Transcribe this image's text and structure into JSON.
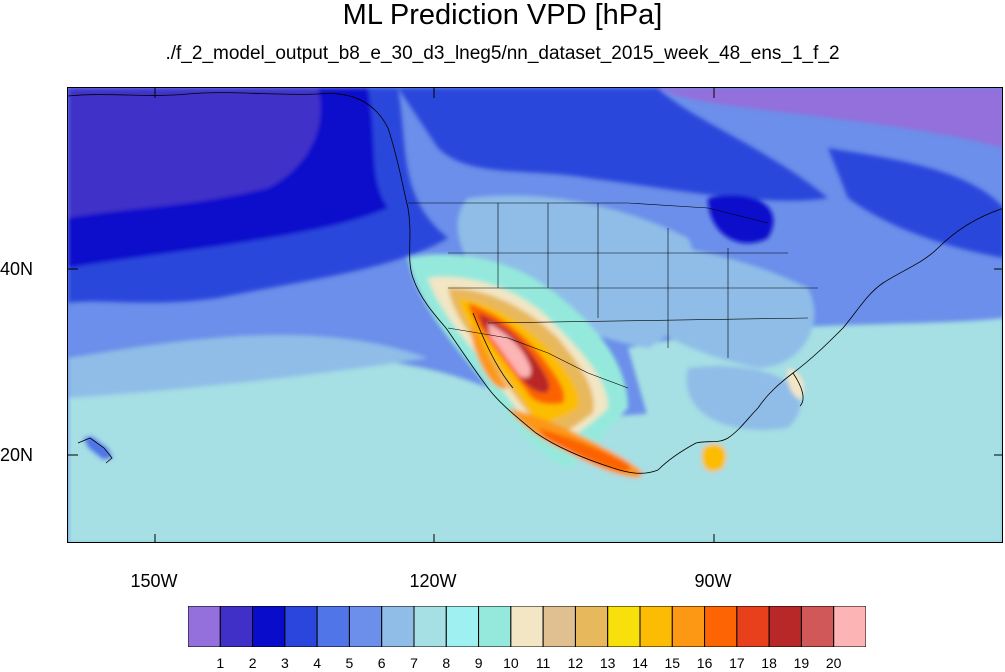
{
  "title": "ML Prediction VPD [hPa]",
  "subtitle": "./f_2_model_output_b8_e_30_d3_lneg5/nn_dataset_2015_week_48_ens_1_f_2",
  "map": {
    "projection": "cylindrical-equidistant",
    "lon_range": [
      -160,
      -60
    ],
    "lat_range": [
      10,
      59
    ],
    "lat_ticks": [
      {
        "value": 40,
        "label": "40N"
      },
      {
        "value": 20,
        "label": "20N"
      }
    ],
    "lon_ticks": [
      {
        "value": -150,
        "label": "150W"
      },
      {
        "value": -120,
        "label": "120W"
      },
      {
        "value": -90,
        "label": "90W"
      }
    ]
  },
  "colorbar": {
    "orientation": "horizontal",
    "colors": [
      "#9370db",
      "#4130c8",
      "#0a0ccc",
      "#2a46dc",
      "#4f75e8",
      "#6b8fea",
      "#8fbde8",
      "#a6dfe4",
      "#9ff0f0",
      "#95e9dc",
      "#f2e6c4",
      "#e0c090",
      "#e8b85c",
      "#f8e00c",
      "#fcbc04",
      "#fc9814",
      "#fc6404",
      "#e8401c",
      "#b82828",
      "#d05858",
      "#fcb4b4"
    ],
    "labels": [
      "1",
      "2",
      "3",
      "4",
      "5",
      "6",
      "7",
      "8",
      "9",
      "10",
      "11",
      "12",
      "13",
      "14",
      "15",
      "16",
      "17",
      "18",
      "19",
      "20"
    ]
  }
}
